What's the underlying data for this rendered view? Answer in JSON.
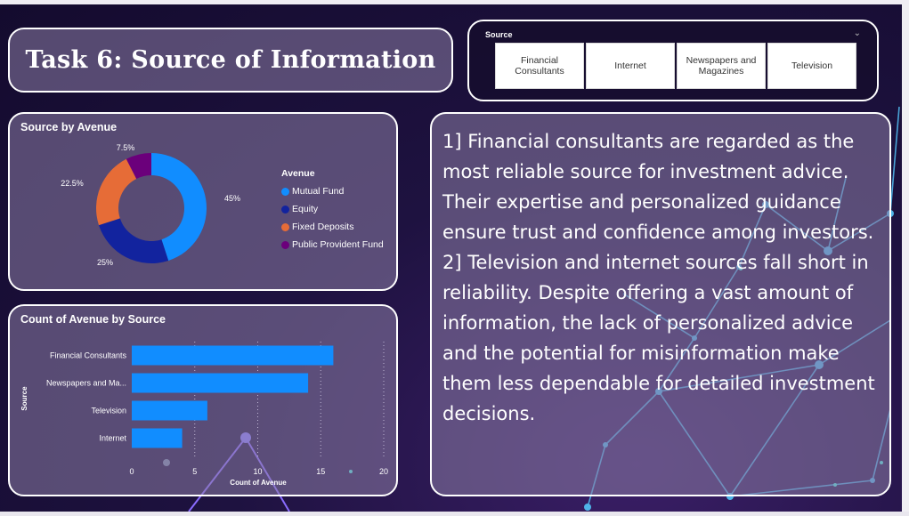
{
  "title": "Task 6: Source of Information",
  "slicer": {
    "label": "Source",
    "options": [
      "Financial Consultants",
      "Internet",
      "Newspapers and Magazines",
      "Television"
    ]
  },
  "donut": {
    "title": "Source by Avenue",
    "legend_title": "Avenue",
    "slices": [
      {
        "label": "Mutual Fund",
        "value": 45,
        "display": "45%",
        "color": "#118dff"
      },
      {
        "label": "Equity",
        "value": 25,
        "display": "25%",
        "color": "#12239e"
      },
      {
        "label": "Fixed Deposits",
        "value": 22.5,
        "display": "22.5%",
        "color": "#e66c37"
      },
      {
        "label": "Public Provident Fund",
        "value": 7.5,
        "display": "7.5%",
        "color": "#6b007b"
      }
    ]
  },
  "chart_data": {
    "type": "bar",
    "title": "Count of Avenue by Source",
    "xlabel": "Count of Avenue",
    "ylabel": "Source",
    "categories": [
      "Financial Consultants",
      "Newspapers and Ma...",
      "Television",
      "Internet"
    ],
    "values": [
      16,
      14,
      6,
      4
    ],
    "xlim": [
      0,
      20
    ],
    "xticks": [
      "0",
      "5",
      "10",
      "15",
      "20"
    ],
    "color": "#118dff"
  },
  "insights": {
    "p1": "1] Financial consultants are regarded as the most reliable source for investment advice. Their expertise and personalized guidance ensure trust and confidence among investors.",
    "p2": "2] Television and internet sources fall short in reliability. Despite offering a vast amount of information, the lack of personalized advice and the potential for misinformation make them less dependable for detailed investment decisions."
  }
}
